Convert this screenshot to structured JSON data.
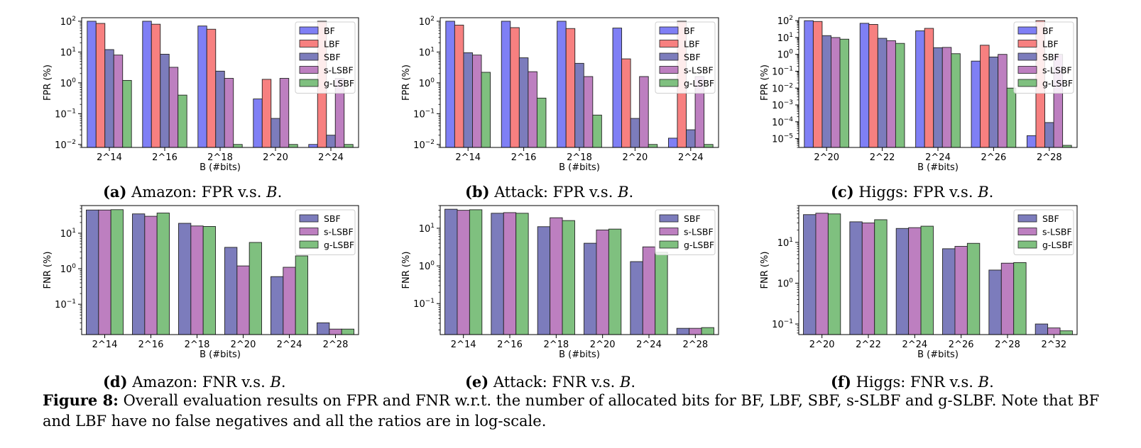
{
  "colors": {
    "BF": "#7f7ff5",
    "LBF": "#f78080",
    "SBF": "#7c7cbc",
    "s-LSBF": "#bd7fc0",
    "g-LSBF": "#7fc07f"
  },
  "chart_data": [
    {
      "id": "a",
      "type": "bar",
      "caption_label": "(a)",
      "caption_text": "Amazon: FPR v.s.",
      "caption_var": "B",
      "xlabel": "B (#bits)",
      "ylabel": "FPR (%)",
      "yscale": "log",
      "ylim": [
        0.008,
        130
      ],
      "yticks": [
        0.01,
        0.1,
        1,
        10,
        100
      ],
      "ytick_labels": [
        [
          "10",
          "−2"
        ],
        [
          "10",
          "−1"
        ],
        [
          "10",
          "0"
        ],
        [
          "10",
          "1"
        ],
        [
          "10",
          "2"
        ]
      ],
      "legend": "top-right",
      "categories": [
        "2^14",
        "2^16",
        "2^18",
        "2^20",
        "2^24"
      ],
      "series": [
        {
          "name": "BF",
          "values": [
            100,
            100,
            70,
            0.3,
            0.01
          ]
        },
        {
          "name": "LBF",
          "values": [
            85,
            80,
            55,
            1.3,
            100
          ]
        },
        {
          "name": "SBF",
          "values": [
            12,
            8.5,
            2.4,
            0.07,
            0.02
          ]
        },
        {
          "name": "s-LSBF",
          "values": [
            8,
            3.2,
            1.4,
            1.4,
            1.4
          ]
        },
        {
          "name": "g-LSBF",
          "values": [
            1.2,
            0.4,
            0.01,
            0.01,
            0.01
          ]
        }
      ]
    },
    {
      "id": "b",
      "type": "bar",
      "caption_label": "(b)",
      "caption_text": "Attack: FPR v.s.",
      "caption_var": "B",
      "xlabel": "B (#bits)",
      "ylabel": "FPR (%)",
      "yscale": "log",
      "ylim": [
        0.008,
        130
      ],
      "yticks": [
        0.01,
        0.1,
        1,
        10,
        100
      ],
      "ytick_labels": [
        [
          "10",
          "−2"
        ],
        [
          "10",
          "−1"
        ],
        [
          "10",
          "0"
        ],
        [
          "10",
          "1"
        ],
        [
          "10",
          "2"
        ]
      ],
      "legend": "top-right",
      "categories": [
        "2^14",
        "2^16",
        "2^18",
        "2^20",
        "2^24"
      ],
      "series": [
        {
          "name": "BF",
          "values": [
            100,
            100,
            100,
            60,
            0.016
          ]
        },
        {
          "name": "LBF",
          "values": [
            75,
            62,
            58,
            6,
            100
          ]
        },
        {
          "name": "SBF",
          "values": [
            9.5,
            6.5,
            4.3,
            0.07,
            0.03
          ]
        },
        {
          "name": "s-LSBF",
          "values": [
            8,
            2.3,
            1.6,
            1.6,
            1.6
          ]
        },
        {
          "name": "g-LSBF",
          "values": [
            2.2,
            0.32,
            0.09,
            0.01,
            0.01
          ]
        }
      ]
    },
    {
      "id": "c",
      "type": "bar",
      "caption_label": "(c)",
      "caption_text": "Higgs: FPR v.s.",
      "caption_var": "B",
      "xlabel": "B (#bits)",
      "ylabel": "FPR (%)",
      "yscale": "log",
      "ylim": [
        3e-06,
        150
      ],
      "yticks": [
        1e-05,
        0.0001,
        0.001,
        0.01,
        0.1,
        1,
        10,
        100
      ],
      "ytick_labels": [
        [
          "10",
          "−5"
        ],
        [
          "10",
          "−4"
        ],
        [
          "10",
          "−3"
        ],
        [
          "10",
          "−2"
        ],
        [
          "10",
          "−1"
        ],
        [
          "10",
          "0"
        ],
        [
          "10",
          "1"
        ],
        [
          "10",
          "2"
        ]
      ],
      "legend": "top-right",
      "categories": [
        "2^20",
        "2^22",
        "2^24",
        "2^26",
        "2^28"
      ],
      "series": [
        {
          "name": "BF",
          "values": [
            100,
            70,
            25,
            0.4,
            1.5e-05
          ]
        },
        {
          "name": "LBF",
          "values": [
            90,
            60,
            35,
            3.5,
            100
          ]
        },
        {
          "name": "SBF",
          "values": [
            13,
            9,
            2.5,
            0.7,
            9e-05
          ]
        },
        {
          "name": "s-LSBF",
          "values": [
            10,
            6.5,
            2.6,
            1,
            1
          ]
        },
        {
          "name": "g-LSBF",
          "values": [
            8,
            4.5,
            1.1,
            0.01,
            4e-06
          ]
        }
      ]
    },
    {
      "id": "d",
      "type": "bar",
      "caption_label": "(d)",
      "caption_text": "Amazon: FNR v.s.",
      "caption_var": "B",
      "xlabel": "B (#bits)",
      "ylabel": "FNR (%)",
      "yscale": "log",
      "ylim": [
        0.014,
        60
      ],
      "yticks": [
        0.1,
        1,
        10
      ],
      "ytick_labels": [
        [
          "10",
          "−1"
        ],
        [
          "10",
          "0"
        ],
        [
          "10",
          "1"
        ]
      ],
      "legend": "top-right",
      "categories": [
        "2^14",
        "2^16",
        "2^18",
        "2^20",
        "2^24",
        "2^28"
      ],
      "series": [
        {
          "name": "SBF",
          "values": [
            45,
            35,
            19,
            4,
            0.6,
            0.03
          ]
        },
        {
          "name": "s-LSBF",
          "values": [
            45,
            30,
            16,
            1.2,
            1.1,
            0.02
          ]
        },
        {
          "name": "g-LSBF",
          "values": [
            46,
            37,
            15.5,
            5.5,
            2.3,
            0.02
          ]
        }
      ]
    },
    {
      "id": "e",
      "type": "bar",
      "caption_label": "(e)",
      "caption_text": "Attack: FNR v.s.",
      "caption_var": "B",
      "xlabel": "B (#bits)",
      "ylabel": "FNR (%)",
      "yscale": "log",
      "ylim": [
        0.015,
        40
      ],
      "yticks": [
        0.1,
        1,
        10
      ],
      "ytick_labels": [
        [
          "10",
          "−1"
        ],
        [
          "10",
          "0"
        ],
        [
          "10",
          "1"
        ]
      ],
      "legend": "top-right",
      "categories": [
        "2^14",
        "2^16",
        "2^18",
        "2^20",
        "2^24",
        "2^28"
      ],
      "series": [
        {
          "name": "SBF",
          "values": [
            32,
            25,
            11,
            4,
            1.3,
            0.022
          ]
        },
        {
          "name": "s-LSBF",
          "values": [
            30,
            26,
            19,
            9,
            3.2,
            0.022
          ]
        },
        {
          "name": "g-LSBF",
          "values": [
            31,
            25,
            16,
            9.5,
            2.3,
            0.023
          ]
        }
      ]
    },
    {
      "id": "f",
      "type": "bar",
      "caption_label": "(f)",
      "caption_text": "Higgs: FNR v.s.",
      "caption_var": "B",
      "xlabel": "B (#bits)",
      "ylabel": "FNR (%)",
      "yscale": "log",
      "ylim": [
        0.055,
        80
      ],
      "yticks": [
        0.1,
        1,
        10
      ],
      "ytick_labels": [
        [
          "10",
          "−1"
        ],
        [
          "10",
          "0"
        ],
        [
          "10",
          "1"
        ]
      ],
      "legend": "top-right",
      "categories": [
        "2^20",
        "2^22",
        "2^24",
        "2^26",
        "2^28",
        "2^32"
      ],
      "series": [
        {
          "name": "SBF",
          "values": [
            48,
            32,
            22,
            7,
            2.1,
            0.1
          ]
        },
        {
          "name": "s-LSBF",
          "values": [
            52,
            30,
            23,
            8,
            3.1,
            0.08
          ]
        },
        {
          "name": "g-LSBF",
          "values": [
            50,
            36,
            25,
            9.5,
            3.2,
            0.068
          ]
        }
      ]
    }
  ],
  "figure_caption": {
    "label": "Figure 8:",
    "text": "Overall evaluation results on FPR and FNR w.r.t. the number of allocated bits for BF, LBF, SBF, s-SLBF and g-SLBF. Note that BF and LBF have no false negatives and all the ratios are in log-scale."
  }
}
